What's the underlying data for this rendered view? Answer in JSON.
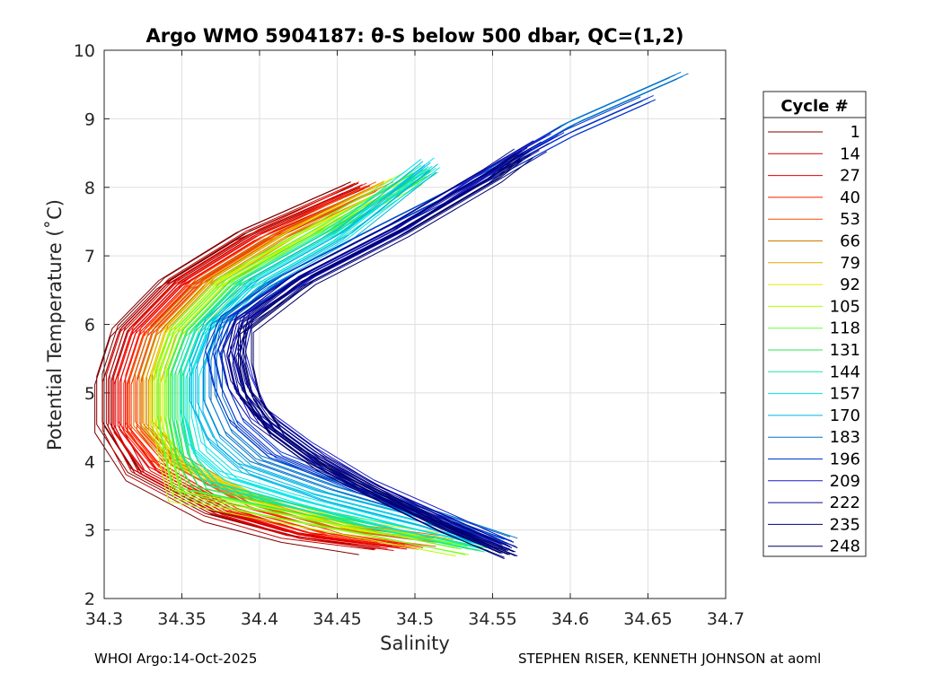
{
  "chart_data": {
    "type": "line",
    "title": "Argo WMO 5904187: θ-S below 500 dbar,  QC=(1,2)",
    "xlabel": "Salinity",
    "ylabel": "Potential Temperature (˚C)",
    "xlim": [
      34.3,
      34.7
    ],
    "ylim": [
      2,
      10
    ],
    "x_ticks": [
      "34.3",
      "34.35",
      "34.4",
      "34.45",
      "34.5",
      "34.55",
      "34.6",
      "34.65",
      "34.7"
    ],
    "y_ticks": [
      "2",
      "3",
      "4",
      "5",
      "6",
      "7",
      "8",
      "9",
      "10"
    ],
    "grid": true,
    "legend_title": "Cycle #",
    "legend_position": "outside-right",
    "series": [
      {
        "name": "1",
        "color": "#800000",
        "points": [
          [
            34.47,
            2.72
          ],
          [
            34.42,
            2.9
          ],
          [
            34.37,
            3.2
          ],
          [
            34.32,
            3.8
          ],
          [
            34.3,
            4.5
          ],
          [
            34.3,
            5.2
          ],
          [
            34.31,
            5.9
          ],
          [
            34.34,
            6.6
          ],
          [
            34.39,
            7.3
          ],
          [
            34.46,
            8.0
          ]
        ]
      },
      {
        "name": "14",
        "color": "#cc0000",
        "points": [
          [
            34.48,
            2.75
          ],
          [
            34.42,
            2.92
          ],
          [
            34.37,
            3.25
          ],
          [
            34.32,
            3.85
          ],
          [
            34.305,
            4.5
          ],
          [
            34.305,
            5.2
          ],
          [
            34.315,
            5.9
          ],
          [
            34.345,
            6.6
          ],
          [
            34.395,
            7.3
          ],
          [
            34.465,
            8.0
          ]
        ]
      },
      {
        "name": "27",
        "color": "#e60000",
        "points": [
          [
            34.49,
            2.78
          ],
          [
            34.43,
            2.95
          ],
          [
            34.38,
            3.3
          ],
          [
            34.33,
            3.9
          ],
          [
            34.31,
            4.5
          ],
          [
            34.31,
            5.2
          ],
          [
            34.32,
            5.9
          ],
          [
            34.35,
            6.6
          ],
          [
            34.4,
            7.3
          ],
          [
            34.47,
            8.0
          ]
        ]
      },
      {
        "name": "40",
        "color": "#ff1a00",
        "points": [
          [
            34.5,
            2.8
          ],
          [
            34.44,
            2.98
          ],
          [
            34.38,
            3.35
          ],
          [
            34.335,
            3.95
          ],
          [
            34.315,
            4.5
          ],
          [
            34.315,
            5.2
          ],
          [
            34.325,
            5.9
          ],
          [
            34.355,
            6.6
          ],
          [
            34.405,
            7.3
          ],
          [
            34.47,
            8.0
          ]
        ]
      },
      {
        "name": "53",
        "color": "#ff4d00",
        "points": [
          [
            34.51,
            2.82
          ],
          [
            34.45,
            3.0
          ],
          [
            34.39,
            3.4
          ],
          [
            34.34,
            4.0
          ],
          [
            34.32,
            4.5
          ],
          [
            34.32,
            5.2
          ],
          [
            34.33,
            5.9
          ],
          [
            34.36,
            6.6
          ],
          [
            34.41,
            7.3
          ],
          [
            34.475,
            8.0
          ]
        ]
      },
      {
        "name": "66",
        "color": "#cc7a00",
        "points": [
          [
            34.51,
            2.84
          ],
          [
            34.45,
            3.02
          ],
          [
            34.39,
            3.42
          ],
          [
            34.345,
            4.0
          ],
          [
            34.325,
            4.5
          ],
          [
            34.325,
            5.2
          ],
          [
            34.335,
            5.9
          ],
          [
            34.365,
            6.6
          ],
          [
            34.415,
            7.3
          ],
          [
            34.48,
            8.0
          ]
        ]
      },
      {
        "name": "79",
        "color": "#e6a800",
        "points": [
          [
            34.52,
            2.86
          ],
          [
            34.46,
            3.05
          ],
          [
            34.4,
            3.45
          ],
          [
            34.345,
            4.0
          ],
          [
            34.33,
            4.5
          ],
          [
            34.33,
            5.2
          ],
          [
            34.34,
            5.9
          ],
          [
            34.37,
            6.6
          ],
          [
            34.42,
            7.3
          ],
          [
            34.485,
            8.05
          ]
        ]
      },
      {
        "name": "92",
        "color": "#e6e600",
        "points": [
          [
            34.52,
            2.88
          ],
          [
            34.46,
            3.07
          ],
          [
            34.4,
            3.47
          ],
          [
            34.35,
            4.0
          ],
          [
            34.335,
            4.5
          ],
          [
            34.335,
            5.2
          ],
          [
            34.345,
            5.9
          ],
          [
            34.375,
            6.6
          ],
          [
            34.425,
            7.3
          ],
          [
            34.49,
            8.05
          ]
        ]
      },
      {
        "name": "105",
        "color": "#b3ff00",
        "points": [
          [
            34.53,
            2.7
          ],
          [
            34.46,
            3.0
          ],
          [
            34.39,
            3.3
          ],
          [
            34.345,
            3.5
          ],
          [
            34.34,
            4.0
          ],
          [
            34.335,
            4.6
          ],
          [
            34.335,
            5.3
          ],
          [
            34.345,
            5.9
          ],
          [
            34.375,
            6.6
          ],
          [
            34.43,
            7.3
          ],
          [
            34.5,
            8.1
          ]
        ]
      },
      {
        "name": "118",
        "color": "#66ff33",
        "points": [
          [
            34.53,
            2.72
          ],
          [
            34.47,
            3.0
          ],
          [
            34.4,
            3.3
          ],
          [
            34.35,
            3.55
          ],
          [
            34.345,
            4.0
          ],
          [
            34.34,
            4.6
          ],
          [
            34.34,
            5.3
          ],
          [
            34.35,
            5.9
          ],
          [
            34.38,
            6.6
          ],
          [
            34.435,
            7.3
          ],
          [
            34.5,
            8.15
          ]
        ]
      },
      {
        "name": "131",
        "color": "#33e64d",
        "points": [
          [
            34.54,
            2.74
          ],
          [
            34.48,
            3.02
          ],
          [
            34.41,
            3.35
          ],
          [
            34.36,
            3.6
          ],
          [
            34.35,
            4.0
          ],
          [
            34.345,
            4.6
          ],
          [
            34.345,
            5.3
          ],
          [
            34.355,
            5.9
          ],
          [
            34.385,
            6.6
          ],
          [
            34.44,
            7.3
          ],
          [
            34.505,
            8.2
          ]
        ]
      },
      {
        "name": "144",
        "color": "#1ae6a0",
        "points": [
          [
            34.54,
            2.76
          ],
          [
            34.48,
            3.05
          ],
          [
            34.42,
            3.4
          ],
          [
            34.37,
            3.7
          ],
          [
            34.355,
            4.1
          ],
          [
            34.35,
            4.6
          ],
          [
            34.35,
            5.3
          ],
          [
            34.36,
            5.9
          ],
          [
            34.39,
            6.6
          ],
          [
            34.445,
            7.3
          ],
          [
            34.51,
            8.3
          ]
        ]
      },
      {
        "name": "157",
        "color": "#00e6e6",
        "points": [
          [
            34.55,
            2.78
          ],
          [
            34.49,
            3.1
          ],
          [
            34.43,
            3.45
          ],
          [
            34.38,
            3.8
          ],
          [
            34.36,
            4.2
          ],
          [
            34.355,
            4.7
          ],
          [
            34.355,
            5.3
          ],
          [
            34.365,
            5.9
          ],
          [
            34.395,
            6.6
          ],
          [
            34.45,
            7.3
          ],
          [
            34.51,
            8.35
          ]
        ]
      },
      {
        "name": "170",
        "color": "#00b3e6",
        "points": [
          [
            34.55,
            2.8
          ],
          [
            34.5,
            3.15
          ],
          [
            34.44,
            3.5
          ],
          [
            34.39,
            3.9
          ],
          [
            34.37,
            4.3
          ],
          [
            34.36,
            4.8
          ],
          [
            34.36,
            5.4
          ],
          [
            34.37,
            6.0
          ],
          [
            34.4,
            6.6
          ],
          [
            34.455,
            7.3
          ],
          [
            34.51,
            8.3
          ]
        ]
      },
      {
        "name": "183",
        "color": "#0073cc",
        "points": [
          [
            34.56,
            2.82
          ],
          [
            34.51,
            3.2
          ],
          [
            34.45,
            3.6
          ],
          [
            34.4,
            4.0
          ],
          [
            34.38,
            4.4
          ],
          [
            34.37,
            4.9
          ],
          [
            34.37,
            5.5
          ],
          [
            34.375,
            6.0
          ],
          [
            34.41,
            6.6
          ],
          [
            34.47,
            7.3
          ],
          [
            34.54,
            8.1
          ],
          [
            34.6,
            8.9
          ],
          [
            34.67,
            9.6
          ]
        ]
      },
      {
        "name": "196",
        "color": "#0033cc",
        "points": [
          [
            34.56,
            2.78
          ],
          [
            34.51,
            3.2
          ],
          [
            34.46,
            3.65
          ],
          [
            34.41,
            4.1
          ],
          [
            34.385,
            4.6
          ],
          [
            34.375,
            5.1
          ],
          [
            34.37,
            5.6
          ],
          [
            34.38,
            6.1
          ],
          [
            34.42,
            6.7
          ],
          [
            34.48,
            7.4
          ],
          [
            34.55,
            8.2
          ],
          [
            34.6,
            8.8
          ],
          [
            34.65,
            9.3
          ]
        ]
      },
      {
        "name": "209",
        "color": "#1a1acc",
        "points": [
          [
            34.56,
            2.74
          ],
          [
            34.52,
            3.15
          ],
          [
            34.47,
            3.65
          ],
          [
            34.43,
            4.2
          ],
          [
            34.4,
            4.7
          ],
          [
            34.39,
            5.2
          ],
          [
            34.385,
            5.6
          ],
          [
            34.39,
            6.1
          ],
          [
            34.43,
            6.7
          ],
          [
            34.49,
            7.4
          ],
          [
            34.55,
            8.3
          ],
          [
            34.59,
            8.8
          ]
        ]
      },
      {
        "name": "222",
        "color": "#0d0d99",
        "points": [
          [
            34.56,
            2.7
          ],
          [
            34.52,
            3.1
          ],
          [
            34.47,
            3.6
          ],
          [
            34.43,
            4.1
          ],
          [
            34.4,
            4.6
          ],
          [
            34.385,
            5.1
          ],
          [
            34.38,
            5.6
          ],
          [
            34.39,
            6.1
          ],
          [
            34.43,
            6.7
          ],
          [
            34.49,
            7.4
          ],
          [
            34.55,
            8.2
          ],
          [
            34.58,
            8.6
          ]
        ]
      },
      {
        "name": "235",
        "color": "#000080",
        "points": [
          [
            34.56,
            2.66
          ],
          [
            34.52,
            3.05
          ],
          [
            34.48,
            3.5
          ],
          [
            34.44,
            4.0
          ],
          [
            34.41,
            4.5
          ],
          [
            34.39,
            5.0
          ],
          [
            34.385,
            5.5
          ],
          [
            34.39,
            6.0
          ],
          [
            34.43,
            6.7
          ],
          [
            34.49,
            7.4
          ],
          [
            34.55,
            8.2
          ],
          [
            34.57,
            8.5
          ]
        ]
      },
      {
        "name": "248",
        "color": "#000066",
        "points": [
          [
            34.56,
            2.64
          ],
          [
            34.52,
            3.0
          ],
          [
            34.48,
            3.45
          ],
          [
            34.44,
            3.9
          ],
          [
            34.41,
            4.4
          ],
          [
            34.395,
            4.9
          ],
          [
            34.39,
            5.4
          ],
          [
            34.39,
            5.9
          ],
          [
            34.43,
            6.6
          ],
          [
            34.49,
            7.3
          ],
          [
            34.55,
            8.1
          ],
          [
            34.57,
            8.45
          ]
        ]
      }
    ]
  },
  "footer": {
    "left": "WHOI Argo:14-Oct-2025",
    "right": "STEPHEN RISER, KENNETH JOHNSON at aoml"
  }
}
